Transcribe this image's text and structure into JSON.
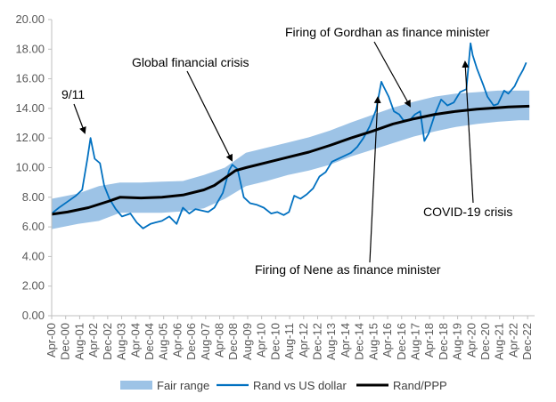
{
  "chart_data": {
    "type": "line",
    "title": "",
    "xlabel": "",
    "ylabel": "",
    "ylim": [
      0,
      20
    ],
    "yticks": [
      "0.00",
      "2.00",
      "4.00",
      "6.00",
      "8.00",
      "10.00",
      "12.00",
      "14.00",
      "16.00",
      "18.00",
      "20.00"
    ],
    "xticks": [
      "Apr-00",
      "Dec-00",
      "Aug-01",
      "Apr-02",
      "Dec-02",
      "Aug-03",
      "Apr-04",
      "Dec-04",
      "Aug-05",
      "Apr-06",
      "Dec-06",
      "Aug-07",
      "Apr-08",
      "Dec-08",
      "Aug-09",
      "Apr-10",
      "Dec-10",
      "Aug-11",
      "Apr-12",
      "Dec-12",
      "Aug-13",
      "Apr-14",
      "Dec-14",
      "Aug-15",
      "Apr-16",
      "Dec-16",
      "Aug-17",
      "Apr-18",
      "Dec-18",
      "Aug-19",
      "Apr-20",
      "Dec-20",
      "Aug-21",
      "Apr-22",
      "Dec-22"
    ],
    "grid": false,
    "legend_position": "bottom",
    "series": [
      {
        "name": "Fair range",
        "kind": "band",
        "color": "#9dc3e6",
        "x": [
          2000.25,
          2001.5,
          2002.5,
          2003.5,
          2004.5,
          2005.5,
          2006.5,
          2007.5,
          2008.5,
          2009.5,
          2010.5,
          2011.5,
          2012.5,
          2013.5,
          2014.5,
          2015.5,
          2016.5,
          2017.5,
          2018.5,
          2019.5,
          2020.5,
          2021.5,
          2022.5,
          2023.0
        ],
        "lower": [
          5.85,
          6.2,
          6.4,
          6.95,
          6.95,
          6.95,
          7.05,
          7.25,
          7.9,
          8.75,
          9.1,
          9.5,
          9.8,
          10.2,
          10.75,
          11.2,
          11.65,
          12.1,
          12.45,
          12.75,
          12.95,
          13.1,
          13.2,
          13.2
        ],
        "upper": [
          7.9,
          8.25,
          8.75,
          9.0,
          9.0,
          9.05,
          9.1,
          9.5,
          10.0,
          11.0,
          11.35,
          11.7,
          12.05,
          12.5,
          13.05,
          13.55,
          14.05,
          14.45,
          14.8,
          15.0,
          15.1,
          15.2,
          15.2,
          15.2
        ]
      },
      {
        "name": "Rand vs US dollar",
        "kind": "line",
        "color": "#0070c0",
        "x": [
          2000.25,
          2000.6,
          2001.0,
          2001.4,
          2001.7,
          2001.95,
          2002.1,
          2002.3,
          2002.55,
          2002.75,
          2003.0,
          2003.3,
          2003.6,
          2004.0,
          2004.3,
          2004.6,
          2004.95,
          2005.2,
          2005.5,
          2005.85,
          2006.2,
          2006.5,
          2006.8,
          2007.1,
          2007.4,
          2007.7,
          2008.0,
          2008.4,
          2008.7,
          2008.85,
          2009.1,
          2009.4,
          2009.7,
          2010.0,
          2010.35,
          2010.7,
          2011.0,
          2011.3,
          2011.55,
          2011.8,
          2012.1,
          2012.4,
          2012.7,
          2013.0,
          2013.3,
          2013.6,
          2013.9,
          2014.2,
          2014.5,
          2014.8,
          2015.1,
          2015.4,
          2015.7,
          2015.95,
          2016.05,
          2016.3,
          2016.55,
          2016.8,
          2017.0,
          2017.3,
          2017.55,
          2017.8,
          2018.0,
          2018.2,
          2018.5,
          2018.8,
          2019.1,
          2019.4,
          2019.7,
          2020.0,
          2020.2,
          2020.3,
          2020.5,
          2020.8,
          2021.0,
          2021.3,
          2021.5,
          2021.8,
          2022.0,
          2022.3,
          2022.5,
          2022.7,
          2022.85
        ],
        "y": [
          6.9,
          7.3,
          7.7,
          8.1,
          8.5,
          10.6,
          12.0,
          10.6,
          10.3,
          8.8,
          7.9,
          7.2,
          6.7,
          6.9,
          6.3,
          5.9,
          6.2,
          6.3,
          6.4,
          6.7,
          6.2,
          7.3,
          6.9,
          7.2,
          7.1,
          7.0,
          7.3,
          8.3,
          9.8,
          10.2,
          9.9,
          8.0,
          7.6,
          7.5,
          7.3,
          6.9,
          7.0,
          6.8,
          7.0,
          8.1,
          7.9,
          8.2,
          8.6,
          9.4,
          9.7,
          10.4,
          10.6,
          10.8,
          11.0,
          11.4,
          12.0,
          12.8,
          13.9,
          15.8,
          15.5,
          14.8,
          13.8,
          13.6,
          13.2,
          13.2,
          13.6,
          13.8,
          11.8,
          12.3,
          13.6,
          14.6,
          14.2,
          14.4,
          15.1,
          15.3,
          18.4,
          17.6,
          16.7,
          15.6,
          14.8,
          14.2,
          14.3,
          15.2,
          15.0,
          15.5,
          16.1,
          16.6,
          17.1
        ]
      },
      {
        "name": "Rand/PPP",
        "kind": "line",
        "color": "#000000",
        "x": [
          2000.25,
          2001.0,
          2002.0,
          2003.0,
          2003.5,
          2004.5,
          2005.5,
          2006.5,
          2007.5,
          2008.0,
          2008.5,
          2009.0,
          2009.5,
          2010.5,
          2011.5,
          2012.5,
          2013.5,
          2014.5,
          2015.5,
          2016.5,
          2017.5,
          2018.5,
          2019.5,
          2020.5,
          2021.5,
          2022.0,
          2023.0
        ],
        "y": [
          6.85,
          7.0,
          7.3,
          7.75,
          8.0,
          7.95,
          8.0,
          8.15,
          8.5,
          8.8,
          9.3,
          9.8,
          10.0,
          10.35,
          10.7,
          11.05,
          11.5,
          12.0,
          12.45,
          12.95,
          13.3,
          13.6,
          13.8,
          13.95,
          14.05,
          14.1,
          14.15
        ]
      }
    ],
    "annotations": [
      {
        "text": "9/11",
        "x": 2001.95,
        "y": 11.6
      },
      {
        "text": "Global financial crisis",
        "x": 2008.85,
        "y": 10.5
      },
      {
        "text": "Firing of Gordhan as finance minister",
        "x": 2017.2,
        "y": 14.0
      },
      {
        "text": "Firing of Nene as finance minister",
        "x": 2015.95,
        "y": 14.7
      },
      {
        "text": "COVID-19 crisis",
        "x": 2020.3,
        "y": 18.0
      }
    ]
  },
  "legend": {
    "fair_range": "Fair range",
    "rand_usd": "Rand vs US dollar",
    "rand_ppp": "Rand/PPP"
  }
}
